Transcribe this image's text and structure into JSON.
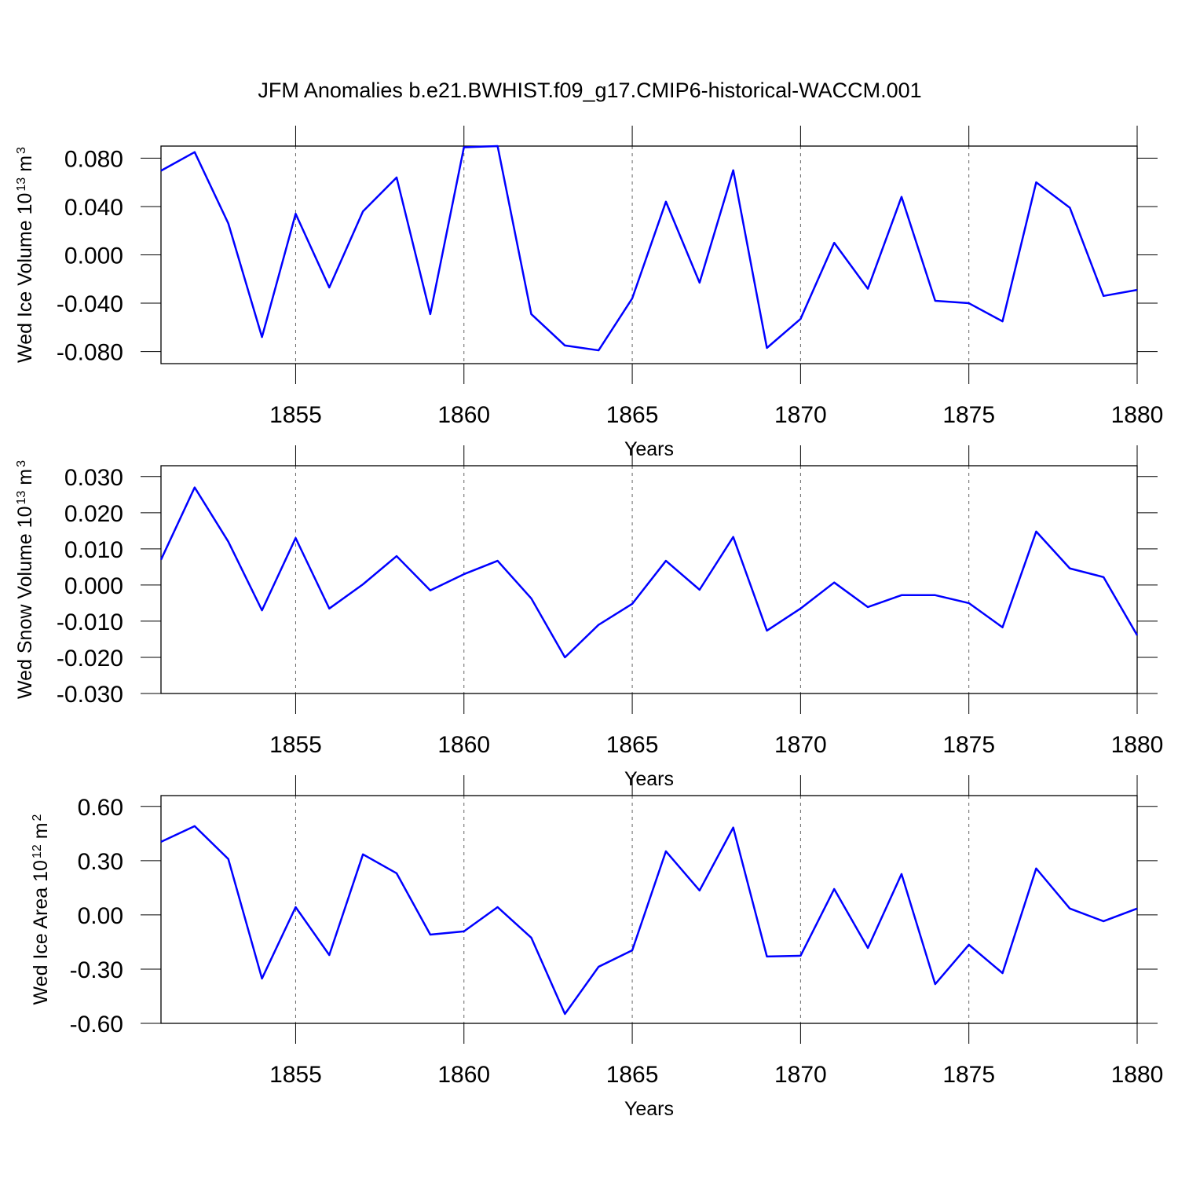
{
  "title": "JFM Anomalies b.e21.BWHIST.f09_g17.CMIP6-historical-WACCM.001",
  "chart_data": [
    {
      "type": "line",
      "xlabel": "Years",
      "ylabel": [
        "Wed Ice Volume 10",
        "13",
        "m",
        "3"
      ],
      "x": [
        1851,
        1852,
        1853,
        1854,
        1855,
        1856,
        1857,
        1858,
        1859,
        1860,
        1861,
        1862,
        1863,
        1864,
        1865,
        1866,
        1867,
        1868,
        1869,
        1870,
        1871,
        1872,
        1873,
        1874,
        1875,
        1876,
        1877,
        1878,
        1879,
        1880
      ],
      "series": [
        {
          "color": "#0000ff",
          "values": [
            0.0696,
            0.085,
            0.026,
            -0.068,
            0.034,
            -0.027,
            0.036,
            0.064,
            -0.049,
            0.089,
            0.09,
            -0.049,
            -0.075,
            -0.079,
            -0.036,
            0.044,
            -0.023,
            0.07,
            -0.077,
            -0.053,
            0.01,
            -0.028,
            0.048,
            -0.038,
            -0.04,
            -0.055,
            0.06,
            0.039,
            -0.034,
            -0.029
          ]
        }
      ],
      "xlim": [
        1851,
        1880
      ],
      "xticks": [
        1855,
        1860,
        1865,
        1870,
        1875,
        1880
      ],
      "ylim": [
        -0.09,
        0.09
      ],
      "yticks": [
        {
          "value": -0.08,
          "label": "-0.080"
        },
        {
          "value": -0.04,
          "label": "-0.040"
        },
        {
          "value": 0,
          "label": "0.000"
        },
        {
          "value": 0.04,
          "label": "0.040"
        },
        {
          "value": 0.08,
          "label": "0.080"
        }
      ],
      "grid": "x"
    },
    {
      "type": "line",
      "xlabel": "Years",
      "ylabel": [
        "Wed Snow Volume 10",
        "13",
        "m",
        "3"
      ],
      "x": [
        1851,
        1852,
        1853,
        1854,
        1855,
        1856,
        1857,
        1858,
        1859,
        1860,
        1861,
        1862,
        1863,
        1864,
        1865,
        1866,
        1867,
        1868,
        1869,
        1870,
        1871,
        1872,
        1873,
        1874,
        1875,
        1876,
        1877,
        1878,
        1879,
        1880
      ],
      "series": [
        {
          "color": "#0000ff",
          "values": [
            0.007,
            0.027,
            0.012,
            -0.007,
            0.013,
            -0.0065,
            0.0002,
            0.008,
            -0.0015,
            0.003,
            0.0067,
            -0.0037,
            -0.02,
            -0.011,
            -0.0052,
            0.0067,
            -0.0013,
            0.0133,
            -0.0126,
            -0.0065,
            0.0007,
            -0.0061,
            -0.0028,
            -0.0028,
            -0.005,
            -0.0117,
            0.0148,
            0.0046,
            0.0022,
            -0.0139
          ]
        }
      ],
      "xlim": [
        1851,
        1880
      ],
      "xticks": [
        1855,
        1860,
        1865,
        1870,
        1875,
        1880
      ],
      "ylim": [
        -0.03,
        0.033
      ],
      "yticks": [
        {
          "value": -0.03,
          "label": "-0.030"
        },
        {
          "value": -0.02,
          "label": "-0.020"
        },
        {
          "value": -0.01,
          "label": "-0.010"
        },
        {
          "value": 0,
          "label": "0.000"
        },
        {
          "value": 0.01,
          "label": "0.010"
        },
        {
          "value": 0.02,
          "label": "0.020"
        },
        {
          "value": 0.03,
          "label": "0.030"
        }
      ],
      "grid": "x"
    },
    {
      "type": "line",
      "xlabel": "Years",
      "ylabel": [
        "Wed Ice Area 10",
        "12",
        "m",
        "2"
      ],
      "x": [
        1851,
        1852,
        1853,
        1854,
        1855,
        1856,
        1857,
        1858,
        1859,
        1860,
        1861,
        1862,
        1863,
        1864,
        1865,
        1866,
        1867,
        1868,
        1869,
        1870,
        1871,
        1872,
        1873,
        1874,
        1875,
        1876,
        1877,
        1878,
        1879,
        1880
      ],
      "series": [
        {
          "color": "#0000ff",
          "values": [
            0.404,
            0.491,
            0.309,
            -0.352,
            0.043,
            -0.222,
            0.335,
            0.23,
            -0.109,
            -0.091,
            0.043,
            -0.126,
            -0.548,
            -0.287,
            -0.196,
            0.352,
            0.135,
            0.483,
            -0.23,
            -0.226,
            0.143,
            -0.183,
            0.226,
            -0.383,
            -0.165,
            -0.322,
            0.257,
            0.035,
            -0.035,
            0.035
          ]
        }
      ],
      "xlim": [
        1851,
        1880
      ],
      "xticks": [
        1855,
        1860,
        1865,
        1870,
        1875,
        1880
      ],
      "ylim": [
        -0.6,
        0.66
      ],
      "yticks": [
        {
          "value": -0.6,
          "label": "-0.60"
        },
        {
          "value": -0.3,
          "label": "-0.30"
        },
        {
          "value": 0,
          "label": "0.00"
        },
        {
          "value": 0.3,
          "label": "0.30"
        },
        {
          "value": 0.6,
          "label": "0.60"
        }
      ],
      "grid": "x"
    }
  ]
}
